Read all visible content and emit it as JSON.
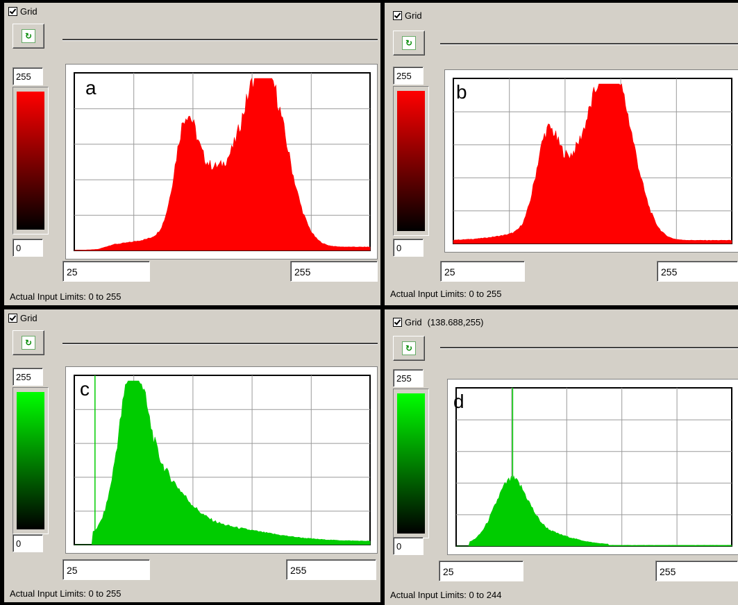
{
  "panels": [
    {
      "id": "a",
      "letter": "a",
      "grid_label": "Grid",
      "grid_checked": true,
      "coord_text": "",
      "max_value": "255",
      "min_value": "0",
      "lower_limit": "25",
      "upper_limit": "255",
      "limits_text": "Actual Input Limits: 0 to 255",
      "color": "#ff0000",
      "marker": null,
      "histogram_kind": "red-a"
    },
    {
      "id": "b",
      "letter": "b",
      "grid_label": "Grid",
      "grid_checked": true,
      "coord_text": "",
      "max_value": "255",
      "min_value": "0",
      "lower_limit": "25",
      "upper_limit": "255",
      "limits_text": "Actual Input Limits: 0 to 255",
      "color": "#ff0000",
      "marker": null,
      "histogram_kind": "red-b"
    },
    {
      "id": "c",
      "letter": "c",
      "grid_label": "Grid",
      "grid_checked": true,
      "coord_text": "",
      "max_value": "255",
      "min_value": "0",
      "lower_limit": "25",
      "upper_limit": "255",
      "limits_text": "Actual Input Limits: 0 to 255",
      "color": "#00cc00",
      "marker": 0.07,
      "histogram_kind": "green-c"
    },
    {
      "id": "d",
      "letter": "d",
      "grid_label": "Grid",
      "grid_checked": true,
      "coord_text": "(138.688,255)",
      "max_value": "255",
      "min_value": "0",
      "lower_limit": "25",
      "upper_limit": "255",
      "limits_text": "Actual Input Limits: 0 to 244",
      "color": "#00cc00",
      "marker": 0.205,
      "histogram_kind": "green-d"
    }
  ],
  "icons": {
    "refresh": "refresh-icon",
    "checkbox": "checkbox-icon"
  }
}
